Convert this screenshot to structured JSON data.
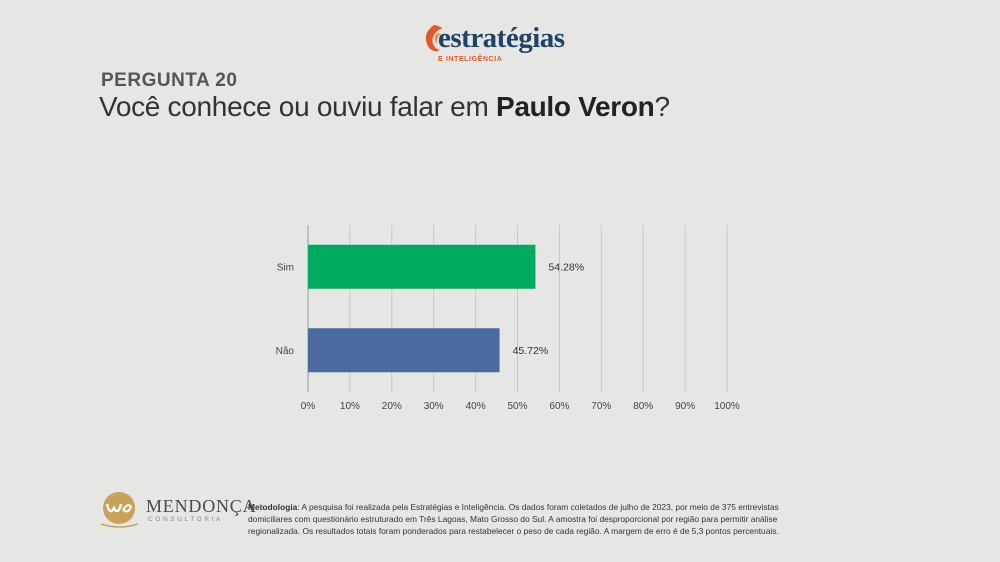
{
  "brand": {
    "name": "estratégias",
    "subtitle": "E INTELIGÊNCIA"
  },
  "question": {
    "number": "PERGUNTA 20",
    "prefix": "Você conhece ou ouviu falar em ",
    "highlight": "Paulo Veron",
    "suffix": "?"
  },
  "chart_data": {
    "type": "bar",
    "orientation": "horizontal",
    "categories": [
      "Sim",
      "Não"
    ],
    "values": [
      54.28,
      45.72
    ],
    "value_labels": [
      "54.28%",
      "45.72%"
    ],
    "xlim": [
      0,
      100
    ],
    "x_ticks": [
      "0%",
      "10%",
      "20%",
      "30%",
      "40%",
      "50%",
      "60%",
      "70%",
      "80%",
      "90%",
      "100%"
    ],
    "colors": [
      "#00ab5f",
      "#4a6aa0"
    ],
    "grid": true,
    "title": "",
    "xlabel": "",
    "ylabel": ""
  },
  "footer": {
    "partner_name": "MENDONÇA",
    "partner_sub": "CONSULTORIA",
    "method_label": "Metodologia",
    "method_text": ": A pesquisa foi realizada pela Estratégias e Inteligência. Os dados foram coletados de julho de 2023, por meio de 375 entrevistas domiciliares com questionário estruturado em Três Lagoas, Mato Grosso do Sul. A amostra foi desproporcional por região para permitir análise regionalizada. Os resultados totais foram ponderados para restabelecer o peso de cada região. A margem de erro é de 5,3 pontos percentuais."
  }
}
